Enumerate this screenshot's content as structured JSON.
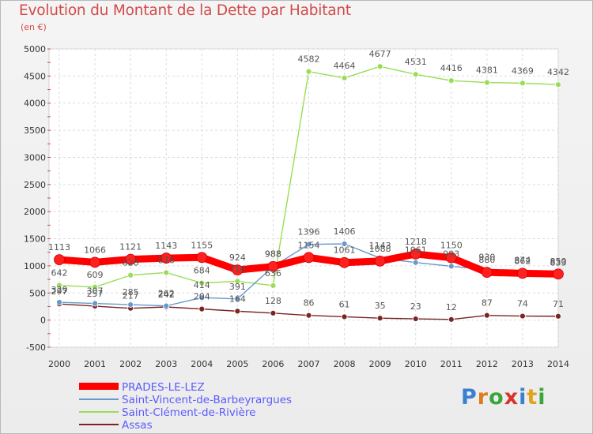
{
  "title": "Evolution du Montant de la Dette par Habitant",
  "unit": "(en €)",
  "logo": "Proxiti",
  "chart_data": {
    "type": "line",
    "x": [
      2000,
      2001,
      2002,
      2003,
      2004,
      2005,
      2006,
      2007,
      2008,
      2009,
      2010,
      2011,
      2012,
      2013,
      2014
    ],
    "ylim": [
      -500,
      5000
    ],
    "yticks": [
      -500,
      0,
      500,
      1000,
      1500,
      2000,
      2500,
      3000,
      3500,
      4000,
      4500,
      5000
    ],
    "grid": true,
    "legend_position": "bottom-left",
    "series": [
      {
        "name": "PRADES-LE-LEZ",
        "color": "#ff0000",
        "values": [
          1113,
          1066,
          1121,
          1143,
          1155,
          924,
          988,
          1154,
          1061,
          1088,
          1218,
          1150,
          880,
          862,
          850
        ]
      },
      {
        "name": "Saint-Vincent-de-Barbeyrargues",
        "color": "#6699cc",
        "values": [
          329,
          307,
          285,
          262,
          414,
          391,
          988,
          1396,
          1406,
          1143,
          1061,
          993,
          930,
          874,
          833
        ]
      },
      {
        "name": "Saint-Clément-de-Rivière",
        "color": "#99dd55",
        "values": [
          642,
          609,
          828,
          876,
          684,
          716,
          636,
          4582,
          4464,
          4677,
          4531,
          4416,
          4381,
          4369,
          4342
        ]
      },
      {
        "name": "Assas",
        "color": "#7a2424",
        "values": [
          297,
          257,
          217,
          242,
          204,
          164,
          128,
          86,
          61,
          35,
          23,
          12,
          87,
          74,
          71
        ]
      }
    ]
  }
}
